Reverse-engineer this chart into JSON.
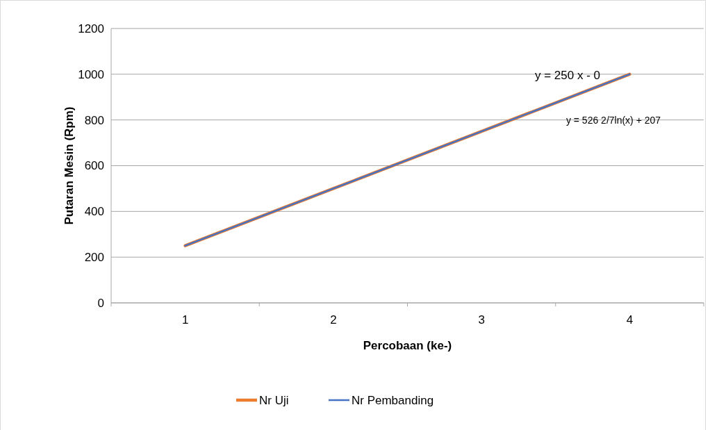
{
  "chart_data": {
    "type": "line",
    "xlabel": "Percobaan (ke-)",
    "ylabel": "Putaran Mesin (Rpm)",
    "categories": [
      "1",
      "2",
      "3",
      "4"
    ],
    "series": [
      {
        "name": "Nr Uji",
        "color": "#ed7d31",
        "values": [
          250,
          500,
          750,
          1000
        ]
      },
      {
        "name": "Nr Pembanding",
        "color": "#4472c4",
        "values": [
          250,
          500,
          750,
          1000
        ]
      }
    ],
    "ylim": [
      0,
      1200
    ],
    "yticks": [
      0,
      200,
      400,
      600,
      800,
      1000,
      1200
    ],
    "grid": "y",
    "legend": "bottom",
    "marker": "none",
    "line_style": "solid",
    "annotations": [
      "y = 250    x - 0",
      "y = 526 2/7ln(x) + 207"
    ]
  }
}
